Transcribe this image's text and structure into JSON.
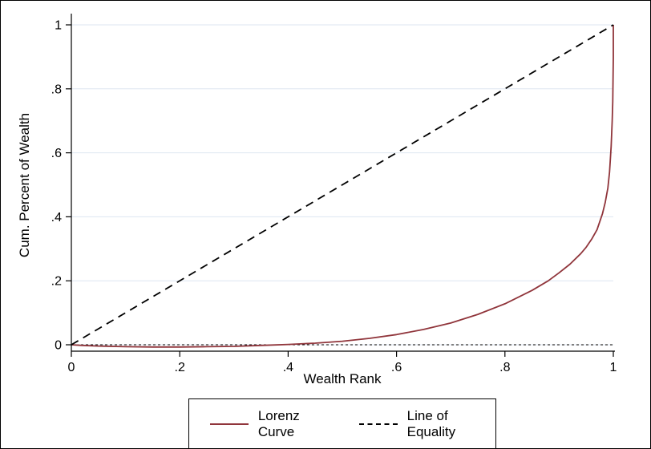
{
  "colors": {
    "lorenz": "#90353b",
    "equality": "#000000",
    "grid": "#dde6f1",
    "axis": "#000000",
    "background": "#ffffff"
  },
  "chart_data": {
    "type": "line",
    "title": "",
    "xlabel": "Wealth Rank",
    "ylabel": "Cum. Percent of Wealth",
    "xlim": [
      0,
      1
    ],
    "ylim": [
      -0.02,
      1
    ],
    "grid": "horizontal",
    "legend_position": "bottom",
    "x_ticks": {
      "values": [
        0,
        0.2,
        0.4,
        0.6,
        0.8,
        1
      ],
      "labels": [
        "0",
        ".2",
        ".4",
        ".6",
        ".8",
        "1"
      ]
    },
    "y_ticks": {
      "values": [
        0,
        0.2,
        0.4,
        0.6,
        0.8,
        1
      ],
      "labels": [
        "0",
        ".2",
        ".4",
        ".6",
        ".8",
        "1"
      ]
    },
    "reference_line": {
      "y": 0,
      "style": "dashed",
      "color": "#000000"
    },
    "series": [
      {
        "name": "Lorenz Curve",
        "color": "#90353b",
        "style": "solid",
        "x": [
          0,
          0.02,
          0.05,
          0.1,
          0.15,
          0.2,
          0.25,
          0.3,
          0.35,
          0.4,
          0.45,
          0.5,
          0.55,
          0.6,
          0.65,
          0.7,
          0.75,
          0.8,
          0.85,
          0.88,
          0.9,
          0.92,
          0.94,
          0.95,
          0.96,
          0.97,
          0.98,
          0.985,
          0.99,
          0.993,
          0.996,
          0.998,
          0.999,
          1,
          1
        ],
        "y": [
          0,
          -0.002,
          -0.004,
          -0.006,
          -0.007,
          -0.007,
          -0.006,
          -0.005,
          -0.002,
          0.001,
          0.005,
          0.011,
          0.02,
          0.032,
          0.048,
          0.068,
          0.095,
          0.128,
          0.17,
          0.2,
          0.225,
          0.252,
          0.285,
          0.305,
          0.33,
          0.36,
          0.41,
          0.445,
          0.49,
          0.54,
          0.62,
          0.7,
          0.76,
          0.9,
          1
        ]
      },
      {
        "name": "Line of Equality",
        "color": "#000000",
        "style": "dashed",
        "x": [
          0,
          1
        ],
        "y": [
          0,
          1
        ]
      }
    ]
  }
}
